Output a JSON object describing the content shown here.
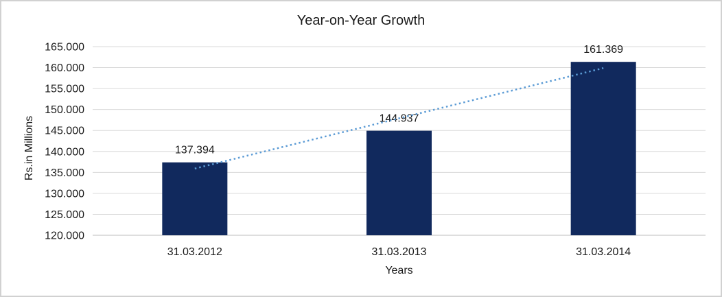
{
  "window": {
    "background": "#ffffff",
    "frame_border_color": "#d1d1d1"
  },
  "chart_data": {
    "type": "bar",
    "title": "Year-on-Year Growth",
    "xlabel": "Years",
    "ylabel": "Rs.in Millions",
    "categories": [
      "31.03.2012",
      "31.03.2013",
      "31.03.2014"
    ],
    "values": [
      137.394,
      144.937,
      161.369
    ],
    "data_labels": [
      "137.394",
      "144.937",
      "161.369"
    ],
    "ylim": [
      120,
      165
    ],
    "y_tick_values": [
      165,
      160,
      155,
      150,
      145,
      140,
      135,
      130,
      125,
      120
    ],
    "y_tick_labels": [
      "165.000",
      "160.000",
      "155.000",
      "150.000",
      "145.000",
      "140.000",
      "135.000",
      "130.000",
      "125.000",
      "120.000"
    ],
    "grid": true,
    "legend_position": "none",
    "bar_color": "#11295d",
    "gridline_color": "#d9d9d9",
    "axis_line_color": "#c9c9c9",
    "text_color": "#1a1a1a",
    "trendline": {
      "type": "linear",
      "style": "dotted",
      "color": "#5b9bd5"
    }
  }
}
